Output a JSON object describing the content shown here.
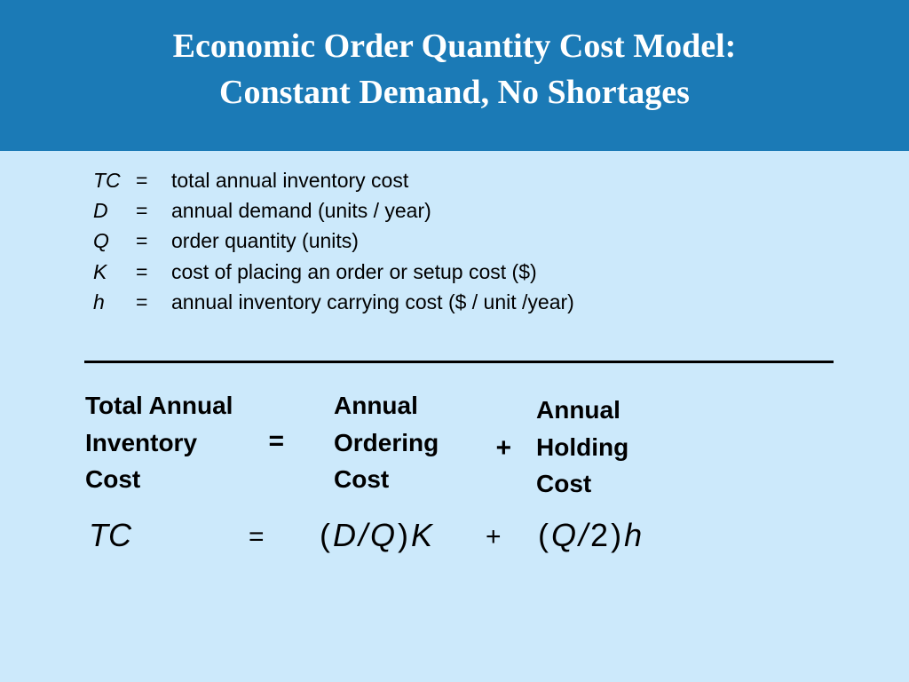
{
  "header": {
    "title": [
      "Economic Order Quantity Cost Model:",
      "Constant Demand, No Shortages"
    ]
  },
  "definitions": [
    {
      "symbol": "TC",
      "sign": "=",
      "text": "total annual inventory cost"
    },
    {
      "symbol": "D",
      "sign": "=",
      "text": "annual demand (units / year)"
    },
    {
      "symbol": "Q",
      "sign": "=",
      "text": "order quantity (units)"
    },
    {
      "symbol": "K",
      "sign": "=",
      "text": "cost of placing an order or setup cost ($)"
    },
    {
      "symbol": "h",
      "sign": "=",
      "text": "annual inventory carrying cost ($ / unit /year)"
    }
  ],
  "word_equation": {
    "terms": [
      [
        "Total Annual",
        "Inventory",
        "Cost"
      ],
      [
        "Annual",
        "Ordering",
        "Cost"
      ],
      [
        "Annual",
        "Holding",
        "Cost"
      ]
    ],
    "operators": [
      "=",
      "+"
    ]
  },
  "formula": {
    "terms": [
      [
        {
          "text": "TC",
          "italic": true
        }
      ],
      [
        {
          "text": "(",
          "italic": false
        },
        {
          "text": "D",
          "italic": true
        },
        {
          "text": "/",
          "italic": true
        },
        {
          "text": "Q",
          "italic": true
        },
        {
          "text": ")",
          "italic": false
        },
        {
          "text": "K",
          "italic": true
        }
      ],
      [
        {
          "text": "(",
          "italic": false
        },
        {
          "text": "Q",
          "italic": true
        },
        {
          "text": "/",
          "italic": true
        },
        {
          "text": "2",
          "italic": false
        },
        {
          "text": ")",
          "italic": false
        },
        {
          "text": "h",
          "italic": true
        }
      ]
    ],
    "operators": [
      "=",
      "+"
    ]
  }
}
